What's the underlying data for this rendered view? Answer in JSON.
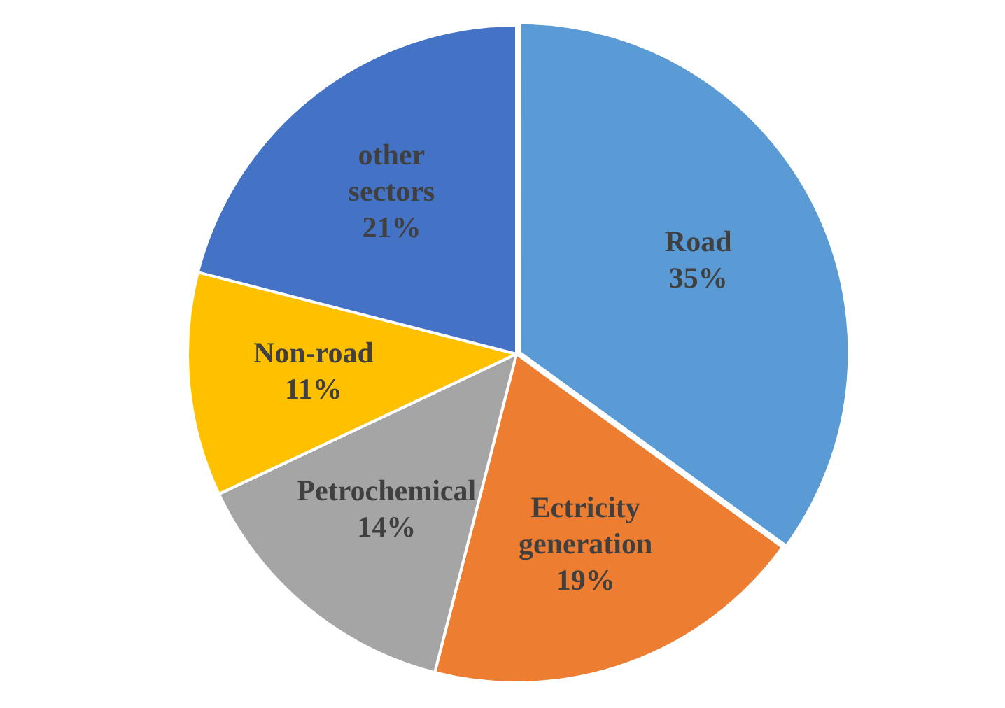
{
  "chart_data": {
    "type": "pie",
    "categories": [
      "Road",
      "Ectricity generation",
      "Petrochemical",
      "Non-road",
      "other sectors"
    ],
    "values": [
      35,
      19,
      14,
      11,
      21
    ],
    "value_labels": [
      "35%",
      "19%",
      "14%",
      "11%",
      "21%"
    ],
    "colors": [
      "#5b9bd5",
      "#ed7d31",
      "#a5a5a5",
      "#ffc000",
      "#4472c4"
    ],
    "legend": false
  }
}
